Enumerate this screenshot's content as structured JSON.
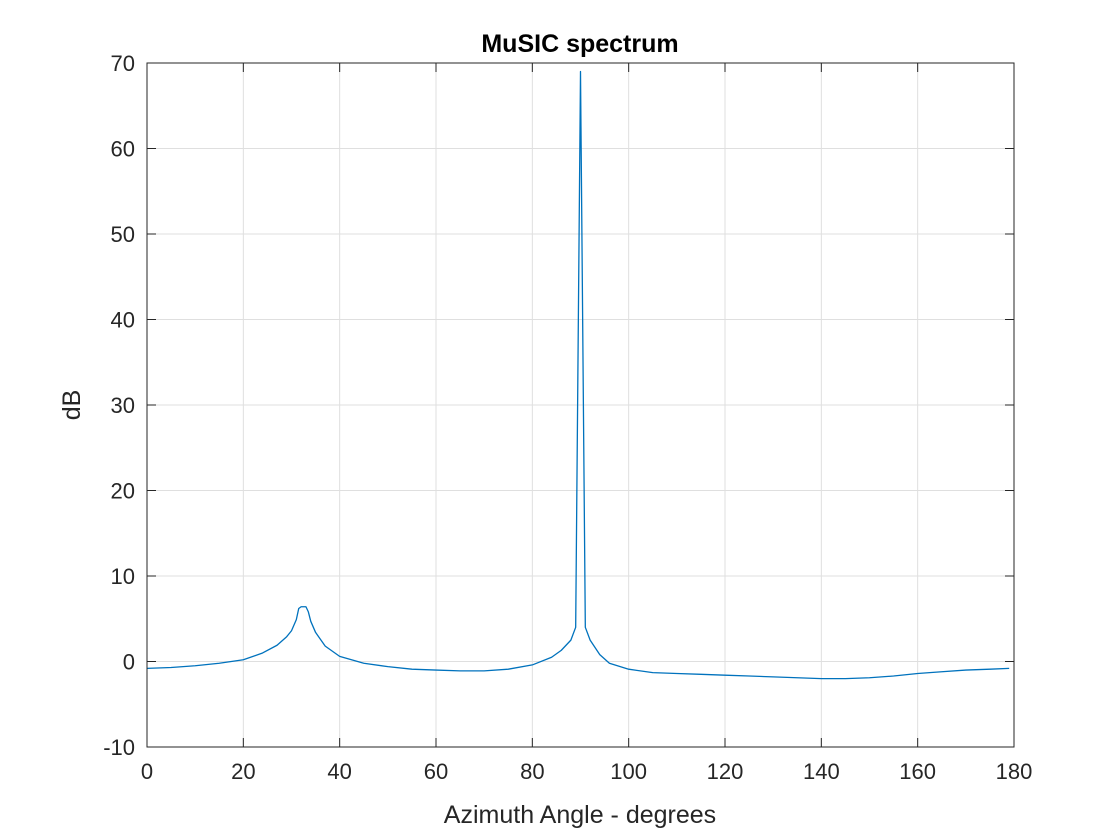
{
  "chart_data": {
    "type": "line",
    "title": "MuSIC spectrum",
    "xlabel": "Azimuth Angle - degrees",
    "ylabel": "dB",
    "xlim": [
      0,
      180
    ],
    "ylim": [
      -10,
      70
    ],
    "xticks": [
      0,
      20,
      40,
      60,
      80,
      100,
      120,
      140,
      160,
      180
    ],
    "yticks": [
      -10,
      0,
      10,
      20,
      30,
      40,
      50,
      60,
      70
    ],
    "grid": true,
    "line_color": "#0072BD",
    "series": [
      {
        "x": [
          0,
          5,
          10,
          15,
          20,
          24,
          27,
          29,
          30,
          31,
          31.5,
          32,
          33,
          33.5,
          34,
          35,
          37,
          40,
          45,
          50,
          55,
          60,
          65,
          68,
          70,
          75,
          80,
          84,
          86,
          88,
          89,
          90,
          91,
          92,
          94,
          96,
          100,
          105,
          110,
          115,
          120,
          125,
          130,
          135,
          140,
          145,
          150,
          155,
          160,
          165,
          170,
          175,
          179
        ],
        "y": [
          -0.8,
          -0.7,
          -0.5,
          -0.2,
          0.2,
          1.0,
          1.9,
          2.9,
          3.6,
          4.9,
          6.2,
          6.4,
          6.4,
          5.8,
          4.7,
          3.4,
          1.8,
          0.6,
          -0.2,
          -0.6,
          -0.9,
          -1.0,
          -1.1,
          -1.1,
          -1.1,
          -0.9,
          -0.4,
          0.5,
          1.3,
          2.5,
          4.0,
          69.0,
          4.0,
          2.5,
          0.8,
          -0.2,
          -0.9,
          -1.3,
          -1.4,
          -1.5,
          -1.6,
          -1.7,
          -1.8,
          -1.9,
          -2.0,
          -2.0,
          -1.9,
          -1.7,
          -1.4,
          -1.2,
          -1.0,
          -0.9,
          -0.8
        ]
      }
    ]
  }
}
